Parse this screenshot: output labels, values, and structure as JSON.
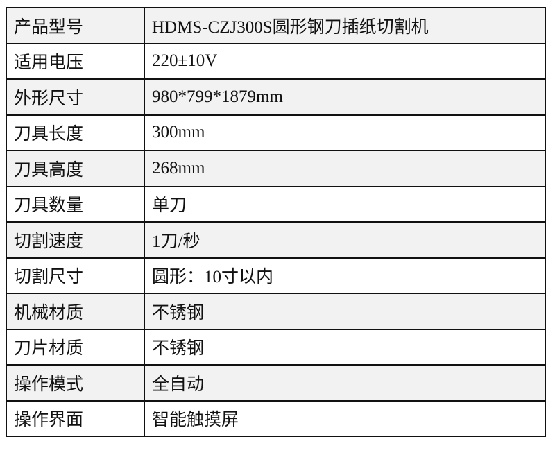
{
  "rows": [
    {
      "label": "产品型号",
      "value": "HDMS-CZJ300S圆形钢刀插纸切割机"
    },
    {
      "label": "适用电压",
      "value": "220±10V"
    },
    {
      "label": "外形尺寸",
      "value": "980*799*1879mm"
    },
    {
      "label": "刀具长度",
      "value": "300mm"
    },
    {
      "label": "刀具高度",
      "value": "268mm"
    },
    {
      "label": "刀具数量",
      "value": "单刀"
    },
    {
      "label": "切割速度",
      "value": "1刀/秒"
    },
    {
      "label": "切割尺寸",
      "value": "圆形：10寸以内"
    },
    {
      "label": "机械材质",
      "value": "不锈钢"
    },
    {
      "label": "刀片材质",
      "value": "不锈钢"
    },
    {
      "label": "操作模式",
      "value": "全自动"
    },
    {
      "label": "操作界面",
      "value": "智能触摸屏"
    }
  ],
  "colors": {
    "shaded_row": "#f2f2f2",
    "border": "#111111"
  }
}
